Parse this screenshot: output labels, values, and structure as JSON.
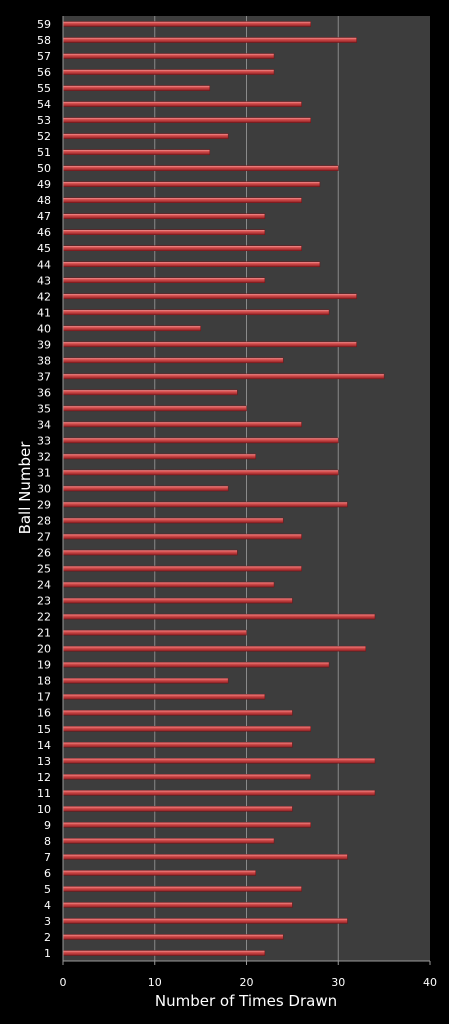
{
  "chart_data": {
    "type": "bar",
    "orientation": "horizontal",
    "title": "",
    "xlabel": "Number of Times Drawn",
    "ylabel": "Ball Number",
    "xlim": [
      0,
      40
    ],
    "x_ticks": [
      "0",
      "10",
      "20",
      "30",
      "40"
    ],
    "grid": "vertical",
    "categories": [
      "1",
      "2",
      "3",
      "4",
      "5",
      "6",
      "7",
      "8",
      "9",
      "10",
      "11",
      "12",
      "13",
      "14",
      "15",
      "16",
      "17",
      "18",
      "19",
      "20",
      "21",
      "22",
      "23",
      "24",
      "25",
      "26",
      "27",
      "28",
      "29",
      "30",
      "31",
      "32",
      "33",
      "34",
      "35",
      "36",
      "37",
      "38",
      "39",
      "40",
      "41",
      "42",
      "43",
      "44",
      "45",
      "46",
      "47",
      "48",
      "49",
      "50",
      "51",
      "52",
      "53",
      "54",
      "55",
      "56",
      "57",
      "58",
      "59"
    ],
    "values": [
      22,
      24,
      31,
      25,
      26,
      21,
      31,
      23,
      27,
      25,
      34,
      27,
      34,
      25,
      27,
      25,
      22,
      18,
      29,
      33,
      20,
      34,
      25,
      23,
      26,
      19,
      26,
      24,
      31,
      18,
      30,
      21,
      30,
      26,
      20,
      19,
      35,
      24,
      32,
      15,
      29,
      32,
      22,
      28,
      26,
      22,
      22,
      26,
      28,
      30,
      16,
      18,
      27,
      26,
      16,
      23,
      23,
      32,
      27
    ],
    "colors": {
      "background": "#000000",
      "plot_area": "#3d3d3d",
      "bar": "#c0393b",
      "bar_highlight": "#f08a8a",
      "gridline": "#8a8a8a",
      "text": "#ffffff"
    }
  }
}
